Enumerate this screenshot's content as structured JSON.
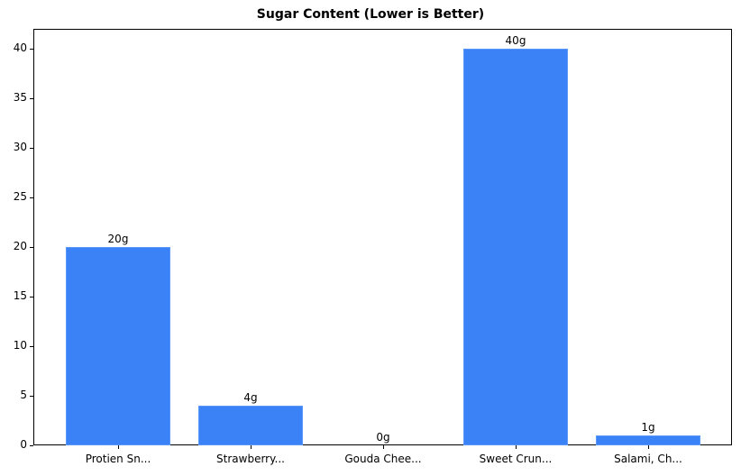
{
  "chart_data": {
    "type": "bar",
    "title": "Sugar Content (Lower is Better)",
    "xlabel": "",
    "ylabel": "",
    "categories": [
      "Protien Sn...",
      "Strawberry...",
      "Gouda Chee...",
      "Sweet Crun...",
      "Salami, Ch..."
    ],
    "values": [
      20,
      4,
      0,
      40,
      1
    ],
    "value_labels": [
      "20g",
      "4g",
      "0g",
      "40g",
      "1g"
    ],
    "ylim": [
      0,
      42
    ],
    "yticks": [
      0,
      5,
      10,
      15,
      20,
      25,
      30,
      35,
      40
    ],
    "grid": false,
    "legend": null,
    "bar_color": "#3b82f6"
  }
}
